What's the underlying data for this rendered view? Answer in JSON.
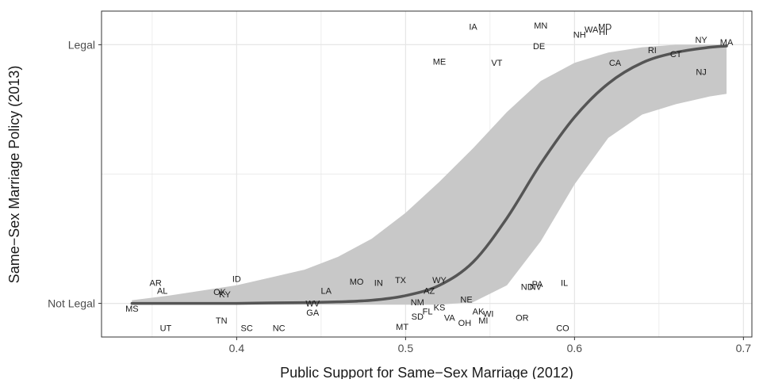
{
  "chart_data": {
    "type": "scatter",
    "xlabel": "Public Support for Same−Sex Marriage (2012)",
    "ylabel": "Same−Sex Marriage Policy (2013)",
    "xlim": [
      0.32,
      0.705
    ],
    "ylim": [
      -0.13,
      1.13
    ],
    "x_ticks": [
      0.4,
      0.5,
      0.6,
      0.7
    ],
    "x_tick_labels": [
      "0.4",
      "0.5",
      "0.6",
      "0.7"
    ],
    "y_ticks": [
      0,
      1
    ],
    "y_tick_labels": [
      "Not Legal",
      "Legal"
    ],
    "grid": true,
    "colors": {
      "curve": "#555555",
      "ribbon": "#c8c8c8",
      "grid": "#e6e6e6",
      "text": "#1a1a1a",
      "axis_text": "#4d4d4d"
    },
    "points": [
      {
        "label": "MS",
        "x": 0.338,
        "y": -0.02
      },
      {
        "label": "UT",
        "x": 0.358,
        "y": -0.095
      },
      {
        "label": "AR",
        "x": 0.352,
        "y": 0.08
      },
      {
        "label": "AL",
        "x": 0.356,
        "y": 0.05
      },
      {
        "label": "OK",
        "x": 0.39,
        "y": 0.045
      },
      {
        "label": "KY",
        "x": 0.393,
        "y": 0.035
      },
      {
        "label": "ID",
        "x": 0.4,
        "y": 0.095
      },
      {
        "label": "TN",
        "x": 0.391,
        "y": -0.065
      },
      {
        "label": "SC",
        "x": 0.406,
        "y": -0.095
      },
      {
        "label": "NC",
        "x": 0.425,
        "y": -0.095
      },
      {
        "label": "WV",
        "x": 0.445,
        "y": 0.0
      },
      {
        "label": "GA",
        "x": 0.445,
        "y": -0.035
      },
      {
        "label": "LA",
        "x": 0.453,
        "y": 0.05
      },
      {
        "label": "MO",
        "x": 0.471,
        "y": 0.085
      },
      {
        "label": "IN",
        "x": 0.484,
        "y": 0.08
      },
      {
        "label": "TX",
        "x": 0.497,
        "y": 0.09
      },
      {
        "label": "WY",
        "x": 0.52,
        "y": 0.09
      },
      {
        "label": "AZ",
        "x": 0.514,
        "y": 0.05
      },
      {
        "label": "NM",
        "x": 0.507,
        "y": 0.005
      },
      {
        "label": "SD",
        "x": 0.507,
        "y": -0.05
      },
      {
        "label": "FL",
        "x": 0.513,
        "y": -0.03
      },
      {
        "label": "KS",
        "x": 0.52,
        "y": -0.015
      },
      {
        "label": "MT",
        "x": 0.498,
        "y": -0.09
      },
      {
        "label": "VA",
        "x": 0.526,
        "y": -0.055
      },
      {
        "label": "NE",
        "x": 0.536,
        "y": 0.015
      },
      {
        "label": "OH",
        "x": 0.535,
        "y": -0.075
      },
      {
        "label": "AK",
        "x": 0.543,
        "y": -0.03
      },
      {
        "label": "WI",
        "x": 0.549,
        "y": -0.04
      },
      {
        "label": "MI",
        "x": 0.546,
        "y": -0.065
      },
      {
        "label": "OR",
        "x": 0.569,
        "y": -0.055
      },
      {
        "label": "ND",
        "x": 0.572,
        "y": 0.065
      },
      {
        "label": "NV",
        "x": 0.577,
        "y": 0.065
      },
      {
        "label": "PA",
        "x": 0.578,
        "y": 0.075
      },
      {
        "label": "IL",
        "x": 0.594,
        "y": 0.08
      },
      {
        "label": "CO",
        "x": 0.593,
        "y": -0.095
      },
      {
        "label": "IA",
        "x": 0.54,
        "y": 1.07
      },
      {
        "label": "ME",
        "x": 0.52,
        "y": 0.935
      },
      {
        "label": "VT",
        "x": 0.554,
        "y": 0.93
      },
      {
        "label": "MN",
        "x": 0.58,
        "y": 1.075
      },
      {
        "label": "DE",
        "x": 0.579,
        "y": 0.995
      },
      {
        "label": "NH",
        "x": 0.603,
        "y": 1.04
      },
      {
        "label": "WA",
        "x": 0.61,
        "y": 1.06
      },
      {
        "label": "MD",
        "x": 0.618,
        "y": 1.07
      },
      {
        "label": "HI",
        "x": 0.617,
        "y": 1.05
      },
      {
        "label": "CA",
        "x": 0.624,
        "y": 0.93
      },
      {
        "label": "RI",
        "x": 0.646,
        "y": 0.98
      },
      {
        "label": "CT",
        "x": 0.66,
        "y": 0.965
      },
      {
        "label": "NY",
        "x": 0.675,
        "y": 1.02
      },
      {
        "label": "MA",
        "x": 0.69,
        "y": 1.01
      },
      {
        "label": "NJ",
        "x": 0.675,
        "y": 0.895
      }
    ],
    "fit": {
      "x": [
        0.338,
        0.36,
        0.38,
        0.4,
        0.42,
        0.44,
        0.46,
        0.48,
        0.5,
        0.52,
        0.54,
        0.56,
        0.58,
        0.6,
        0.62,
        0.64,
        0.66,
        0.68,
        0.69
      ],
      "y": [
        0.0,
        0.0,
        0.0,
        0.0,
        0.002,
        0.003,
        0.006,
        0.012,
        0.03,
        0.07,
        0.16,
        0.33,
        0.54,
        0.72,
        0.85,
        0.93,
        0.97,
        0.99,
        0.995
      ],
      "lower": [
        -0.005,
        -0.005,
        -0.005,
        -0.005,
        -0.005,
        -0.005,
        -0.005,
        -0.005,
        -0.005,
        -0.005,
        0.005,
        0.07,
        0.24,
        0.46,
        0.64,
        0.73,
        0.77,
        0.8,
        0.81
      ],
      "upper": [
        0.012,
        0.03,
        0.05,
        0.07,
        0.1,
        0.13,
        0.18,
        0.25,
        0.35,
        0.47,
        0.6,
        0.74,
        0.86,
        0.93,
        0.97,
        0.99,
        1.0,
        1.0,
        1.0
      ]
    }
  }
}
